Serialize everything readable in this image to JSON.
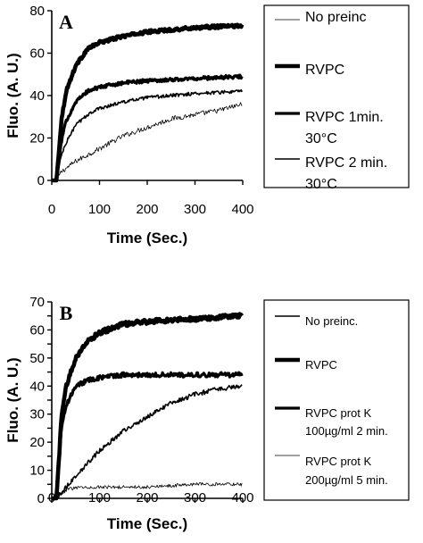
{
  "chart_data": [
    {
      "panel_letter": "A",
      "type": "line",
      "xlabel": "Time (Sec.)",
      "ylabel": "Fluo. (A. U.)",
      "xlim": [
        0,
        400
      ],
      "ylim": [
        0,
        80
      ],
      "x_ticks": [
        "0",
        "100",
        "200",
        "300",
        "400"
      ],
      "y_ticks": [
        "0",
        "20",
        "40",
        "60",
        "80"
      ],
      "grid": false,
      "legend_position": "right",
      "series": [
        {
          "name": "No preinc",
          "line_weight": "thin",
          "noise": 1.2,
          "points": [
            [
              0,
              0
            ],
            [
              10,
              0
            ],
            [
              20,
              4
            ],
            [
              50,
              9
            ],
            [
              100,
              15
            ],
            [
              150,
              21
            ],
            [
              200,
              25
            ],
            [
              250,
              29
            ],
            [
              300,
              31
            ],
            [
              350,
              33
            ],
            [
              400,
              36
            ]
          ]
        },
        {
          "name": "RVPC",
          "line_weight": "thick",
          "noise": 0.7,
          "points": [
            [
              0,
              0
            ],
            [
              10,
              0
            ],
            [
              20,
              28
            ],
            [
              30,
              42
            ],
            [
              50,
              54
            ],
            [
              75,
              62
            ],
            [
              100,
              65
            ],
            [
              150,
              68
            ],
            [
              200,
              70
            ],
            [
              300,
              72
            ],
            [
              400,
              73
            ]
          ]
        },
        {
          "name": "RVPC 1min. 30°C",
          "line_weight": "medium",
          "noise": 0.8,
          "points": [
            [
              0,
              0
            ],
            [
              10,
              0
            ],
            [
              20,
              18
            ],
            [
              30,
              28
            ],
            [
              50,
              37
            ],
            [
              75,
              42
            ],
            [
              100,
              44
            ],
            [
              150,
              46
            ],
            [
              200,
              47
            ],
            [
              300,
              48
            ],
            [
              400,
              49
            ]
          ]
        },
        {
          "name": "RVPC 2 min. 30°C",
          "line_weight": "normal",
          "noise": 0.8,
          "points": [
            [
              0,
              0
            ],
            [
              10,
              0
            ],
            [
              20,
              12
            ],
            [
              35,
              20
            ],
            [
              50,
              26
            ],
            [
              75,
              31
            ],
            [
              100,
              34
            ],
            [
              150,
              37
            ],
            [
              200,
              39
            ],
            [
              300,
              41
            ],
            [
              400,
              42
            ]
          ]
        }
      ]
    },
    {
      "panel_letter": "B",
      "type": "line",
      "xlabel": "Time (Sec.)",
      "ylabel": "Fluo. (A. U.)",
      "xlim": [
        0,
        400
      ],
      "ylim": [
        0,
        70
      ],
      "x_ticks": [
        "0",
        "100",
        "200",
        "300",
        "400"
      ],
      "y_ticks": [
        "0",
        "5",
        "10",
        "15",
        "20",
        "25",
        "30",
        "35",
        "40",
        "45",
        "50",
        "55",
        "60",
        "65",
        "70"
      ],
      "grid": false,
      "legend_position": "right",
      "series": [
        {
          "name": "No preinc.",
          "line_weight": "normal",
          "noise": 0.8,
          "points": [
            [
              0,
              0
            ],
            [
              10,
              0
            ],
            [
              25,
              3
            ],
            [
              50,
              8
            ],
            [
              100,
              17
            ],
            [
              150,
              24
            ],
            [
              200,
              29
            ],
            [
              250,
              34
            ],
            [
              300,
              37
            ],
            [
              350,
              39
            ],
            [
              400,
              40
            ]
          ]
        },
        {
          "name": "RVPC",
          "line_weight": "thick",
          "noise": 0.8,
          "points": [
            [
              0,
              0
            ],
            [
              10,
              0
            ],
            [
              20,
              28
            ],
            [
              30,
              40
            ],
            [
              50,
              50
            ],
            [
              75,
              56
            ],
            [
              100,
              59
            ],
            [
              150,
              62
            ],
            [
              200,
              63
            ],
            [
              300,
              64
            ],
            [
              400,
              65
            ]
          ]
        },
        {
          "name": "RVPC prot K 100µg/ml 2 min.",
          "line_weight": "medium",
          "noise": 0.8,
          "points": [
            [
              0,
              0
            ],
            [
              10,
              0
            ],
            [
              20,
              25
            ],
            [
              30,
              33
            ],
            [
              50,
              40
            ],
            [
              75,
              42
            ],
            [
              100,
              43
            ],
            [
              150,
              44
            ],
            [
              200,
              44
            ],
            [
              300,
              44
            ],
            [
              400,
              44
            ]
          ]
        },
        {
          "name": "RVPC prot K 200µg/ml 5 min.",
          "line_weight": "thin",
          "noise": 0.6,
          "points": [
            [
              0,
              0
            ],
            [
              10,
              0
            ],
            [
              30,
              3
            ],
            [
              60,
              4
            ],
            [
              100,
              4
            ],
            [
              200,
              4
            ],
            [
              300,
              5
            ],
            [
              400,
              5
            ]
          ]
        }
      ]
    }
  ]
}
